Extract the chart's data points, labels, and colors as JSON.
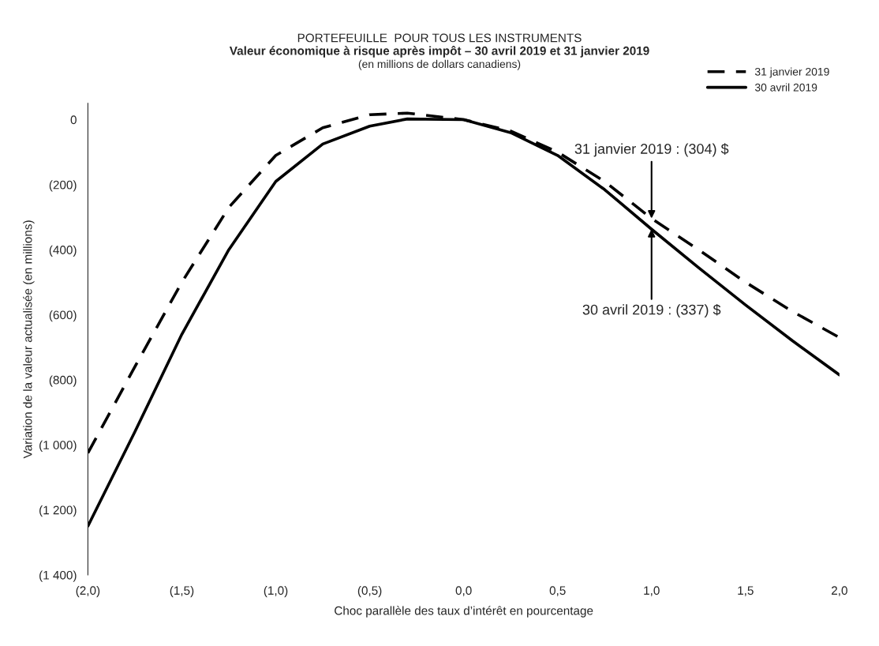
{
  "chart_data": {
    "type": "line",
    "title": "PORTEFEUILLE  POUR TOUS LES INSTRUMENTS",
    "subtitle": "Valeur économique à risque après impôt – 30 avril 2019 et 31 janvier 2019",
    "xlabel": "Choc parallèle des taux d’intérêt en pourcentage",
    "ylabel": "Variation de la valeur actualisée (en millions)",
    "x": [
      -2.0,
      -1.75,
      -1.5,
      -1.25,
      -1.0,
      -0.75,
      -0.5,
      -0.3,
      0.0,
      0.25,
      0.5,
      0.75,
      1.0,
      1.25,
      1.5,
      1.75,
      2.0
    ],
    "series": [
      {
        "name": "31 janvier 2019",
        "color": "#000000",
        "line_style": "dashed",
        "values": [
          -1025,
          -760,
          -500,
          -270,
          -110,
          -25,
          15,
          20,
          0,
          -35,
          -100,
          -190,
          -304,
          -400,
          -500,
          -590,
          -670
        ]
      },
      {
        "name": "30 avril 2019",
        "color": "#000000",
        "line_style": "solid",
        "values": [
          -1250,
          -960,
          -660,
          -400,
          -190,
          -75,
          -20,
          2,
          0,
          -40,
          -110,
          -215,
          -337,
          -455,
          -570,
          -680,
          -785
        ]
      }
    ],
    "xlim": [
      -2.0,
      2.0
    ],
    "xticks": [
      {
        "value": -2.0,
        "label": "(2,0)"
      },
      {
        "value": -1.5,
        "label": "(1,5)"
      },
      {
        "value": -1.0,
        "label": "(1,0)"
      },
      {
        "value": -0.5,
        "label": "(0,5)"
      },
      {
        "value": 0.0,
        "label": "0,0"
      },
      {
        "value": 0.5,
        "label": "0,5"
      },
      {
        "value": 1.0,
        "label": "1,0"
      },
      {
        "value": 1.5,
        "label": "1,5"
      },
      {
        "value": 2.0,
        "label": "2,0"
      }
    ],
    "ylim": [
      -1400,
      50
    ],
    "yticks": [
      0,
      {
        "value": -200,
        "label": "(200)"
      },
      {
        "value": -400,
        "label": "(400)"
      },
      {
        "value": -600,
        "label": "(600)"
      },
      {
        "value": -800,
        "label": "(800)"
      },
      {
        "value": -1000,
        "label": "(1 000)"
      },
      {
        "value": -1200,
        "label": "(1 200)"
      },
      {
        "value": -1400,
        "label": "(1 400)"
      }
    ],
    "annotations": [
      "(en millions de dollars canadiens)",
      {
        "text": "31 janvier 2019 : (304) $",
        "x": 1.0,
        "y": -304
      },
      {
        "text": "30 avril 2019 : (337) $",
        "x": 1.0,
        "y": -337
      }
    ],
    "legend": "top right",
    "grid": false,
    "marker": "none"
  }
}
